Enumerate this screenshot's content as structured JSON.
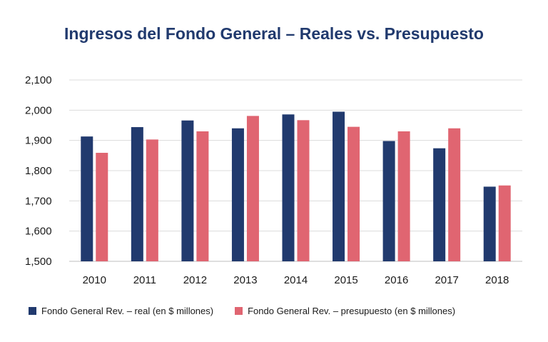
{
  "chart_data": {
    "type": "bar",
    "title": "Ingresos del Fondo General – Reales vs. Presupuesto",
    "categories": [
      "2010",
      "2011",
      "2012",
      "2013",
      "2014",
      "2015",
      "2016",
      "2017",
      "2018"
    ],
    "series": [
      {
        "name": "Fondo General Rev. – real (en $ millones)",
        "color": "#213a6e",
        "values": [
          1913,
          1944,
          1966,
          1940,
          1986,
          1995,
          1898,
          1874,
          1747
        ]
      },
      {
        "name": "Fondo General Rev. – presupuesto (en $ millones)",
        "color": "#e06571",
        "values": [
          1859,
          1903,
          1930,
          1981,
          1967,
          1945,
          1930,
          1940,
          1751
        ]
      }
    ],
    "ylim": [
      1500,
      2100
    ],
    "yticks": [
      "1,500",
      "1,600",
      "1,700",
      "1,800",
      "1,900",
      "2,000",
      "2,100"
    ],
    "grid": true,
    "legend_position": "bottom"
  }
}
